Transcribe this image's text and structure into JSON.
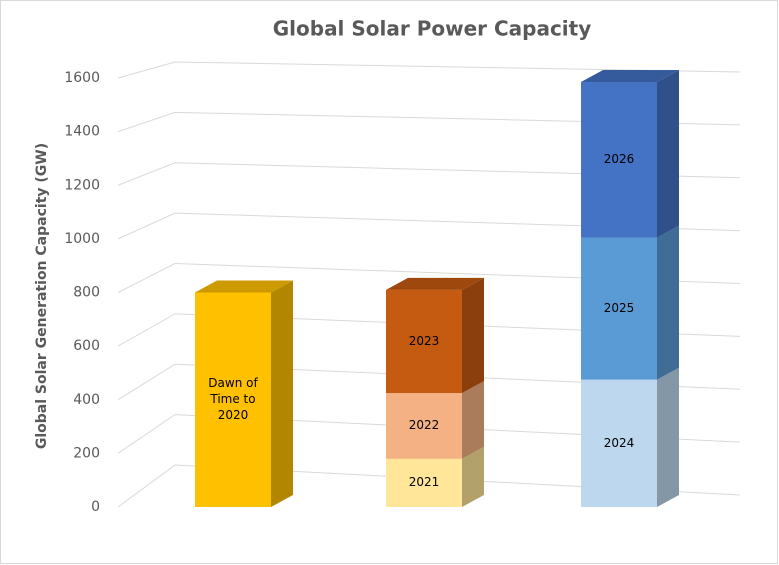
{
  "chart_data": {
    "type": "bar",
    "stacked": true,
    "three_d": true,
    "title": "Global Solar Power Capacity",
    "y_label": "Global Solar Generation Capacity (GW)",
    "categories": [
      null,
      null,
      null
    ],
    "series": [
      {
        "name": "Dawn of Time to 2020",
        "color": "#ffc000",
        "values": [
          800,
          null,
          null
        ]
      },
      {
        "name": "2021",
        "color": "#ffe699",
        "values": [
          null,
          180,
          null
        ]
      },
      {
        "name": "2022",
        "color": "#f4b183",
        "values": [
          null,
          245,
          null
        ]
      },
      {
        "name": "2023",
        "color": "#c55a11",
        "values": [
          null,
          385,
          null
        ]
      },
      {
        "name": "2024",
        "color": "#bdd7ee",
        "values": [
          null,
          null,
          475
        ]
      },
      {
        "name": "2025",
        "color": "#5b9bd5",
        "values": [
          null,
          null,
          530
        ]
      },
      {
        "name": "2026",
        "color": "#4472c4",
        "values": [
          null,
          null,
          580
        ]
      }
    ],
    "ylim": [
      0,
      1600
    ],
    "yticks": [
      0,
      200,
      400,
      600,
      800,
      1000,
      1200,
      1400,
      1600
    ],
    "grid": true
  }
}
